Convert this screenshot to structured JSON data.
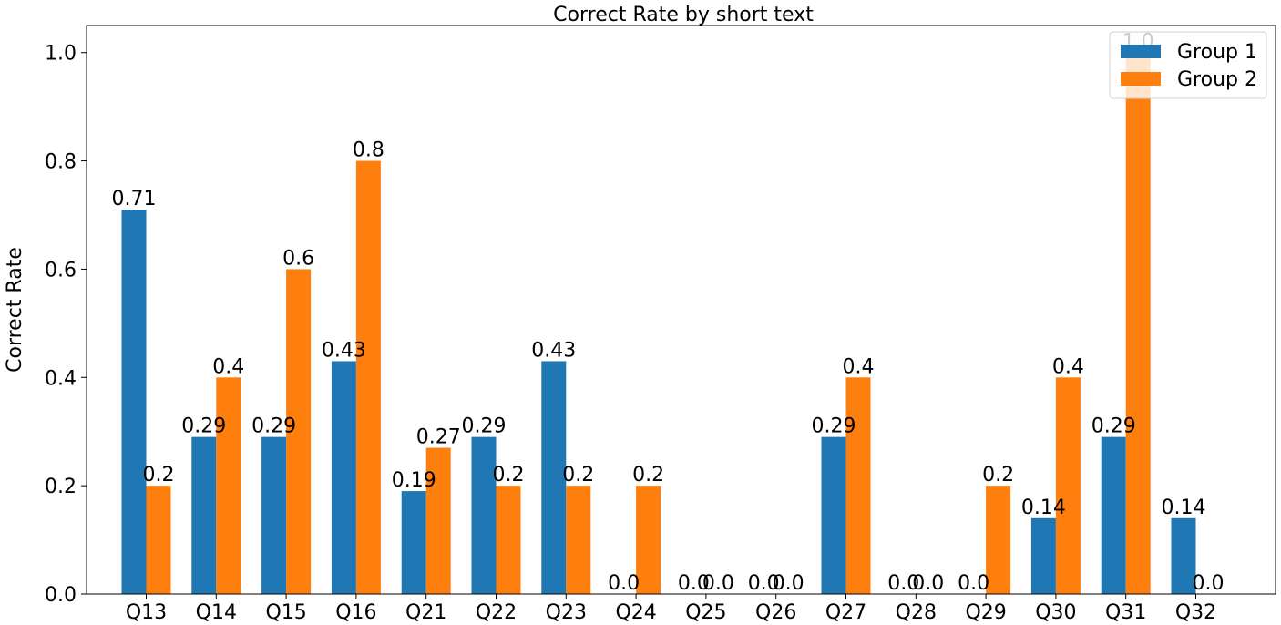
{
  "chart_data": {
    "type": "bar",
    "title": "Correct Rate by short text",
    "xlabel": "",
    "ylabel": "Correct Rate",
    "ylim": [
      0,
      1.05
    ],
    "yticks": [
      "0.0",
      "0.2",
      "0.4",
      "0.6",
      "0.8",
      "1.0"
    ],
    "categories": [
      "Q13",
      "Q14",
      "Q15",
      "Q16",
      "Q21",
      "Q22",
      "Q23",
      "Q24",
      "Q25",
      "Q26",
      "Q27",
      "Q28",
      "Q29",
      "Q30",
      "Q31",
      "Q32"
    ],
    "series": [
      {
        "name": "Group 1",
        "color": "#1f77b4",
        "values": [
          0.71,
          0.29,
          0.29,
          0.43,
          0.19,
          0.29,
          0.43,
          0.0,
          0.0,
          0.0,
          0.29,
          0.0,
          0.0,
          0.14,
          0.29,
          0.14
        ],
        "labels": [
          "0.71",
          "0.29",
          "0.29",
          "0.43",
          "0.19",
          "0.29",
          "0.43",
          "0.0",
          "0.0",
          "0.0",
          "0.29",
          "0.0",
          "0.0",
          "0.14",
          "0.29",
          "0.14"
        ]
      },
      {
        "name": "Group 2",
        "color": "#ff7f0e",
        "values": [
          0.2,
          0.4,
          0.6,
          0.8,
          0.27,
          0.2,
          0.2,
          0.2,
          0.0,
          0.0,
          0.4,
          0.0,
          0.2,
          0.4,
          1.0,
          0.0
        ],
        "labels": [
          "0.2",
          "0.4",
          "0.6",
          "0.8",
          "0.27",
          "0.2",
          "0.2",
          "0.2",
          "0.0",
          "0.0",
          "0.4",
          "0.0",
          "0.2",
          "0.4",
          "1.0",
          "0.0"
        ]
      }
    ],
    "grid": false,
    "legend": "top-right"
  }
}
